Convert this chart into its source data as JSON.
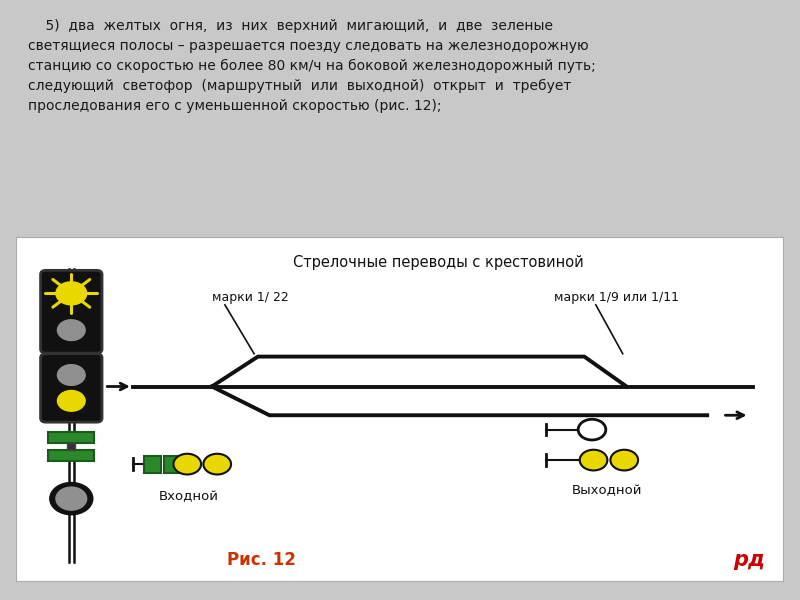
{
  "bg_color": "#c8c8c8",
  "text_bg": "#f5f5f5",
  "diagram_bg": "#ffffff",
  "header_text": "    5)  два  желтых  огня,  из  них  верхний  мигающий,  и  две  зеленые\nсветящиеся полосы – разрешается поезду следовать на железнодорожную\nстанцию со скоростью не более 80 км/ч на боковой железнодорожный путь;\nследующий  светофор  (маршрутный  или  выходной)  открыт  и  требует\nпроследования его с уменьшенной скоростью (рис. 12);",
  "diagram_title": "Стрелочные переводы с крестовиной",
  "label_marki1": "марки 1/ 22",
  "label_marki2": "марки 1/9 или 1/11",
  "label_vhod": "Входной",
  "label_vyhod": "Выходной",
  "caption": "Рис. 12",
  "yellow_color": "#e8d800",
  "green_color": "#2a8a2a",
  "black_color": "#111111",
  "gray_color": "#909090",
  "dark_gray": "#555555",
  "white_color": "#ffffff",
  "caption_color": "#cc3300",
  "rzd_color": "#cc0000"
}
